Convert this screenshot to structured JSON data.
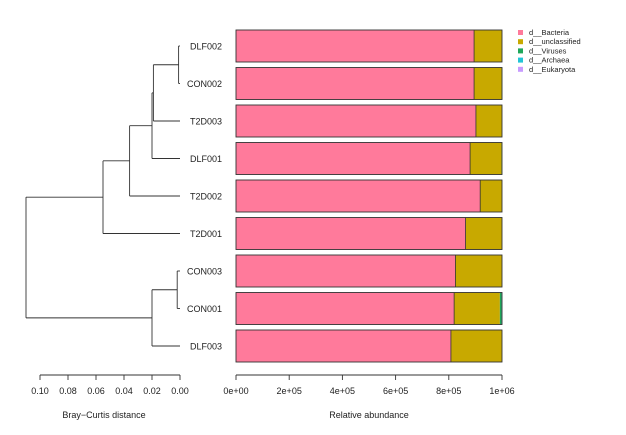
{
  "chart_data": [
    {
      "type": "dendrogram",
      "xlabel": "Bray−Curtis distance",
      "x_ticks": [
        "0.10",
        "0.08",
        "0.06",
        "0.04",
        "0.02",
        "0.00"
      ],
      "xlim": [
        0.1,
        0.0
      ],
      "leaves": [
        "DLF002",
        "CON002",
        "T2D003",
        "DLF001",
        "T2D002",
        "T2D001",
        "CON003",
        "CON001",
        "DLF003"
      ],
      "merges": [
        {
          "a": "DLF002",
          "b": "CON002",
          "height": 0.001
        },
        {
          "a": "T2D003",
          "b": "DLF002+CON002",
          "height": 0.019
        },
        {
          "a": "DLF001",
          "b": "DLF002+CON002+T2D003",
          "height": 0.02
        },
        {
          "a": "T2D002",
          "b": "DLF002+CON002+T2D003+DLF001",
          "height": 0.036
        },
        {
          "a": "T2D001",
          "b": "DLF002+CON002+T2D003+DLF001+T2D002",
          "height": 0.055
        },
        {
          "a": "CON003",
          "b": "CON001",
          "height": 0.002
        },
        {
          "a": "DLF003",
          "b": "CON003+CON001",
          "height": 0.02
        },
        {
          "a": "cluster-1",
          "b": "cluster-2",
          "height": 0.11
        }
      ]
    },
    {
      "type": "bar",
      "orientation": "horizontal",
      "stacked": true,
      "xlabel": "Relative abundance",
      "x_ticks": [
        "0e+00",
        "2e+05",
        "4e+05",
        "6e+05",
        "8e+05",
        "1e+06"
      ],
      "xlim": [
        0,
        1000000
      ],
      "categories": [
        "DLF002",
        "CON002",
        "T2D003",
        "DLF001",
        "T2D002",
        "T2D001",
        "CON003",
        "CON001",
        "DLF003"
      ],
      "series": [
        {
          "name": "d__Bacteria",
          "color": "#FF7A9B",
          "values": [
            895000,
            895000,
            902000,
            880000,
            918000,
            863000,
            825000,
            820000,
            808000
          ]
        },
        {
          "name": "d__unclassified",
          "color": "#C8A900",
          "values": [
            105000,
            104000,
            98000,
            118000,
            82000,
            137000,
            175000,
            172000,
            192000
          ]
        },
        {
          "name": "d__Viruses",
          "color": "#1FA75A",
          "values": [
            0,
            1000,
            0,
            2000,
            0,
            0,
            0,
            6000,
            0
          ]
        },
        {
          "name": "d__Archaea",
          "color": "#22C4D6",
          "values": [
            0,
            0,
            0,
            0,
            0,
            0,
            0,
            1000,
            0
          ]
        },
        {
          "name": "d__Eukaryota",
          "color": "#C79BFF",
          "values": [
            0,
            0,
            0,
            0,
            0,
            0,
            0,
            1000,
            0
          ]
        }
      ],
      "legend_position": "top-right"
    }
  ]
}
